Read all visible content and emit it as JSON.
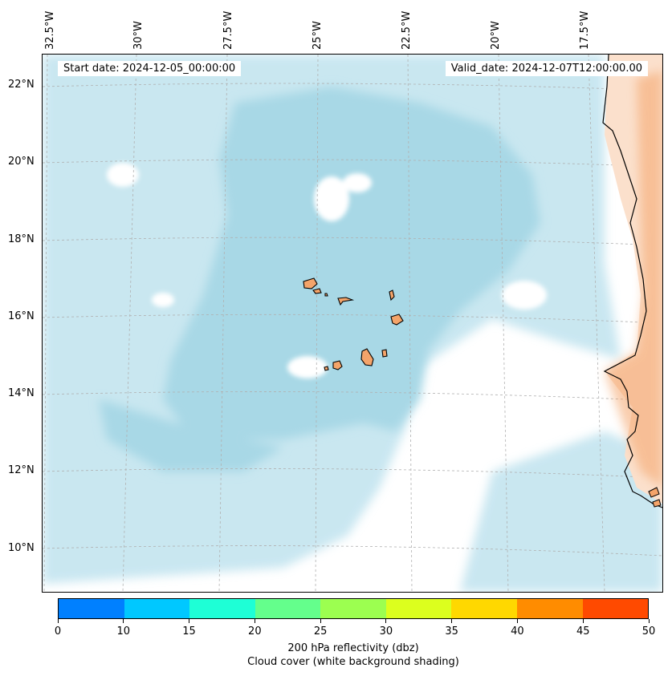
{
  "header": {
    "start_date": "Start date: 2024-12-05_00:00:00",
    "valid_date": "Valid_date: 2024-12-07T12:00:00.00"
  },
  "map": {
    "longitude_labels": [
      "32.5°W",
      "30°W",
      "27.5°W",
      "25°W",
      "22.5°W",
      "20°W",
      "17.5°W"
    ],
    "latitude_labels": [
      "22°N",
      "20°N",
      "18°N",
      "16°N",
      "14°N",
      "12°N",
      "10°N"
    ],
    "colors": {
      "cloud_cover": "#b7dfec",
      "cloud_cover_dense": "#a8d8e6",
      "land": "#f4a46a",
      "land_light": "#fbe0cc",
      "coastline": "#000000",
      "gridline": "#b0b0b0"
    }
  },
  "colorbar": {
    "ticks": [
      "0",
      "10",
      "15",
      "20",
      "25",
      "30",
      "35",
      "40",
      "45",
      "50"
    ],
    "colors": [
      "#0080ff",
      "#00c8ff",
      "#1effd6",
      "#64ff8c",
      "#9cff50",
      "#dcff1e",
      "#ffd800",
      "#ff8c00",
      "#ff4a00"
    ],
    "label": "200 hPa reflectivity (dbz)",
    "sublabel": "Cloud cover (white background shading)"
  }
}
